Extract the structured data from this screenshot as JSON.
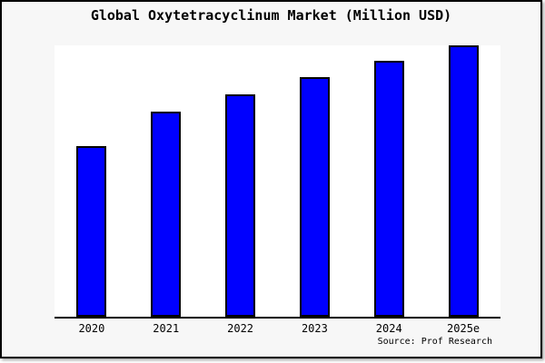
{
  "chart_data": {
    "type": "bar",
    "title": "Global Oxytetracyclinum Market (Million USD)",
    "categories": [
      "2020",
      "2021",
      "2022",
      "2023",
      "2024",
      "2025e"
    ],
    "values": [
      62.8,
      75.2,
      81.7,
      88.0,
      93.9,
      100.0
    ],
    "values_note": "relative scale estimated from bar heights (2025e = 100); chart displays no y-axis tick values",
    "xlabel": "",
    "ylabel": "",
    "ylim": [
      0,
      100.3
    ],
    "gridlines": false,
    "y_axis_visible": false,
    "legend": "none",
    "source": "Source: Prof Research"
  },
  "colors": {
    "bar_fill": "#0000fe",
    "bar_border": "#000000",
    "frame_background": "#f7f7f7",
    "plot_background": "#ffffff",
    "axis_line": "#000000",
    "frame_border": "#000000",
    "title_text": "#000000",
    "label_text": "#000000"
  }
}
